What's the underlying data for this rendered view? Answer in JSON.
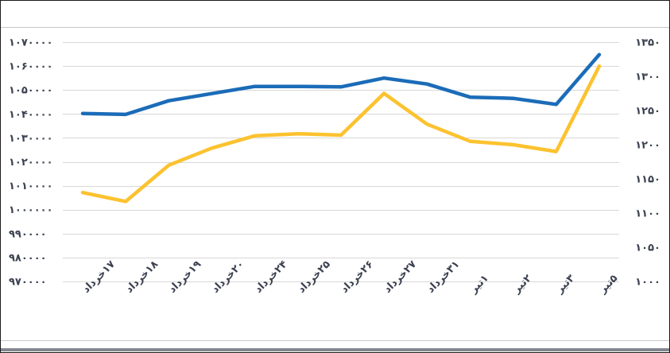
{
  "chart_data": {
    "type": "line",
    "title": "",
    "legend": "none",
    "grid": true,
    "categories": [
      "۱۷خرداد",
      "۱۸خرداد",
      "۱۹خرداد",
      "۲۰خرداد",
      "۲۴خرداد",
      "۲۵خرداد",
      "۲۶خرداد",
      "۲۷خرداد",
      "۳۱خرداد",
      "۱تیر",
      "۲تیر",
      "۳تیر",
      "۵تیر"
    ],
    "series": [
      {
        "name": "line_blue",
        "axis": "left",
        "color": "#1b6cb8",
        "values": [
          1040200,
          1039800,
          1045500,
          1048500,
          1051500,
          1051500,
          1051300,
          1055000,
          1052500,
          1047000,
          1046500,
          1044000,
          1064800
        ]
      },
      {
        "name": "line_yellow",
        "axis": "right",
        "color": "#fcc22f",
        "values": [
          1130,
          1117,
          1170,
          1195,
          1213,
          1216,
          1214,
          1275,
          1230,
          1205,
          1200,
          1190,
          1315
        ]
      }
    ],
    "left_axis": {
      "min": 970000,
      "max": 1070000,
      "step": 10000,
      "tick_labels": [
        "۱۰۷۰۰۰۰",
        "۱۰۶۰۰۰۰",
        "۱۰۵۰۰۰۰",
        "۱۰۴۰۰۰۰",
        "۱۰۳۰۰۰۰",
        "۱۰۲۰۰۰۰",
        "۱۰۱۰۰۰۰",
        "۱۰۰۰۰۰۰",
        "۹۹۰۰۰۰",
        "۹۸۰۰۰۰",
        "۹۷۰۰۰۰"
      ],
      "tick_values": [
        1070000,
        1060000,
        1050000,
        1040000,
        1030000,
        1020000,
        1010000,
        1000000,
        990000,
        980000,
        970000
      ]
    },
    "right_axis": {
      "min": 1000,
      "max": 1350,
      "step": 50,
      "tick_labels": [
        "۱۳۵۰",
        "۱۳۰۰",
        "۱۲۵۰",
        "۱۲۰۰",
        "۱۱۵۰",
        "۱۱۰۰",
        "۱۰۵۰",
        "۱۰۰۰"
      ],
      "tick_values": [
        1350,
        1300,
        1250,
        1200,
        1150,
        1100,
        1050,
        1000
      ]
    },
    "colors": {
      "gridline": "#d8d8d8",
      "top_rule": "#c6c6c6",
      "bottom_rule": "#c9c9c9",
      "bottom_bar": "#83878e",
      "label": "#3b4150"
    }
  }
}
